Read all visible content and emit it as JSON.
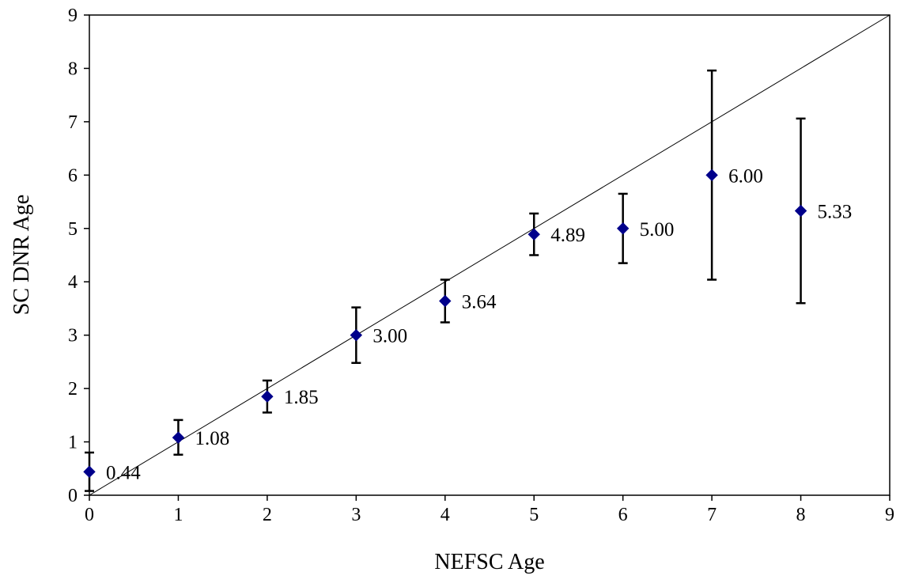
{
  "chart_data": {
    "type": "scatter",
    "title": "",
    "xlabel": "NEFSC Age",
    "ylabel": "SC DNR Age",
    "xlim": [
      0,
      9
    ],
    "ylim": [
      0,
      9
    ],
    "xticks": [
      "0",
      "1",
      "2",
      "3",
      "4",
      "5",
      "6",
      "7",
      "8",
      "9"
    ],
    "yticks": [
      "0",
      "1",
      "2",
      "3",
      "4",
      "5",
      "6",
      "7",
      "8",
      "9"
    ],
    "grid": false,
    "legend": "none",
    "reference_line": {
      "from": [
        0,
        0
      ],
      "to": [
        9,
        9
      ],
      "color": "#000000"
    },
    "series": [
      {
        "marker": "diamond",
        "color": "#00008B",
        "points": [
          {
            "x": 0,
            "y": 0.44,
            "y_low": 0.08,
            "y_high": 0.8,
            "label": "0.44"
          },
          {
            "x": 1,
            "y": 1.08,
            "y_low": 0.76,
            "y_high": 1.41,
            "label": "1.08"
          },
          {
            "x": 2,
            "y": 1.85,
            "y_low": 1.55,
            "y_high": 2.15,
            "label": "1.85"
          },
          {
            "x": 3,
            "y": 3.0,
            "y_low": 2.48,
            "y_high": 3.52,
            "label": "3.00"
          },
          {
            "x": 4,
            "y": 3.64,
            "y_low": 3.24,
            "y_high": 4.04,
            "label": "3.64"
          },
          {
            "x": 5,
            "y": 4.89,
            "y_low": 4.5,
            "y_high": 5.28,
            "label": "4.89"
          },
          {
            "x": 6,
            "y": 5.0,
            "y_low": 4.35,
            "y_high": 5.65,
            "label": "5.00"
          },
          {
            "x": 7,
            "y": 6.0,
            "y_low": 4.04,
            "y_high": 7.96,
            "label": "6.00"
          },
          {
            "x": 8,
            "y": 5.33,
            "y_low": 3.6,
            "y_high": 7.06,
            "label": "5.33"
          }
        ]
      }
    ]
  }
}
